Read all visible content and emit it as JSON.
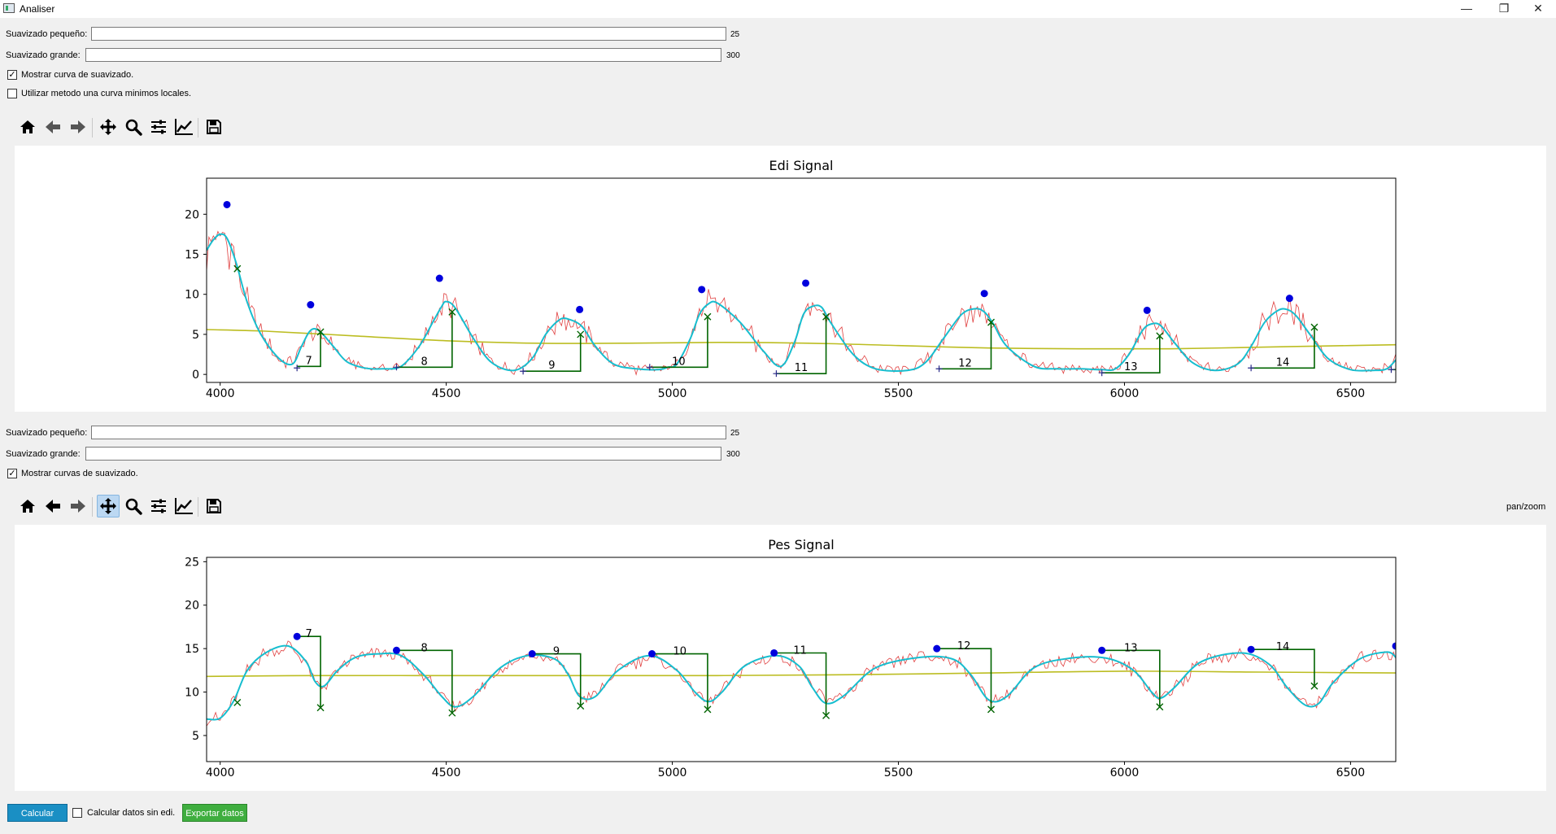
{
  "window": {
    "title": "Analiser",
    "minimize_icon": "minimize-icon",
    "restore_icon": "restore-icon",
    "close_icon": "close-icon"
  },
  "panel1": {
    "small_smooth_label": "Suavizado pequeño:",
    "small_smooth_value": "25",
    "large_smooth_label": "Suavizado grande:",
    "large_smooth_value": "300",
    "show_curve_label": "Mostrar curva de suavizado.",
    "show_curve_checked": true,
    "local_min_label": "Utilizar metodo una curva minimos locales.",
    "local_min_checked": false
  },
  "panel2": {
    "small_smooth_label": "Suavizado pequeño:",
    "small_smooth_value": "25",
    "large_smooth_label": "Suavizado grande:",
    "large_smooth_value": "300",
    "show_curves_label": "Mostrar curvas de suavizado.",
    "show_curves_checked": true,
    "status_text": "pan/zoom"
  },
  "toolbar_icons": [
    "home-icon",
    "back-icon",
    "forward-icon",
    "pan-icon",
    "zoom-icon",
    "configure-subplots-icon",
    "edit-axis-icon",
    "save-icon"
  ],
  "bottom": {
    "calcular_label": "Calcular",
    "calcular_color": "#1a8fc4",
    "sin_edi_label": "Calcular datos sin edi.",
    "exportar_label": "Exportar datos",
    "exportar_color": "#3fae3f"
  },
  "colors": {
    "raw": "#e04040",
    "smooth": "#17becf",
    "trend": "#bcbd22",
    "marker": "#0000dd",
    "box": "#006400"
  },
  "chart_data": [
    {
      "type": "line",
      "title": "Edi Signal",
      "xlim": [
        3970,
        6600
      ],
      "ylim": [
        -1,
        24.5
      ],
      "xticks": [
        4000,
        4500,
        5000,
        5500,
        6000,
        6500
      ],
      "yticks": [
        0,
        5,
        10,
        15,
        20
      ],
      "series": [
        {
          "name": "smooth",
          "x": [
            3970,
            3985,
            4000,
            4015,
            4035,
            4060,
            4090,
            4130,
            4160,
            4180,
            4200,
            4220,
            4250,
            4280,
            4320,
            4360,
            4400,
            4440,
            4470,
            4490,
            4500,
            4520,
            4560,
            4600,
            4650,
            4690,
            4720,
            4750,
            4770,
            4800,
            4830,
            4870,
            4920,
            4970,
            5010,
            4990,
            5040,
            5060,
            5080,
            5100,
            5150,
            5200,
            5240,
            5270,
            5290,
            5310,
            5330,
            5350,
            5400,
            5450,
            5520,
            5560,
            5600,
            5640,
            5670,
            5690,
            5710,
            5740,
            5800,
            5850,
            5900,
            5950,
            5980,
            6010,
            6040,
            6060,
            6080,
            6110,
            6150,
            6200,
            6250,
            6280,
            6310,
            6340,
            6360,
            6380,
            6410,
            6450,
            6500,
            6550,
            6580,
            6600
          ],
          "y": [
            15.5,
            16.8,
            17.5,
            17.0,
            14,
            9,
            5,
            2,
            1.3,
            3.5,
            5.5,
            5.4,
            3.5,
            1.6,
            0.8,
            0.7,
            1.0,
            3.5,
            6.5,
            8.5,
            9.1,
            8.3,
            4.5,
            1.5,
            0.5,
            2,
            5,
            6.8,
            6.9,
            6.0,
            3.5,
            1.3,
            0.7,
            0.6,
            1.3,
            0.9,
            4.5,
            7.5,
            8.8,
            8.9,
            6.5,
            3.0,
            1.0,
            4,
            7.5,
            8.5,
            8.4,
            6.5,
            2.5,
            0.7,
            0.5,
            1.5,
            4.5,
            7.5,
            8.2,
            7.8,
            6.3,
            3.5,
            1.0,
            0.7,
            0.7,
            0.6,
            0.7,
            2.5,
            5.5,
            6.3,
            6.1,
            4.0,
            1.5,
            0.5,
            1.3,
            3.5,
            6.5,
            8.0,
            8.1,
            7.3,
            5.0,
            2.0,
            0.6,
            0.5,
            0.7,
            1.8
          ]
        },
        {
          "name": "trend",
          "x": [
            3970,
            4100,
            4300,
            4500,
            4700,
            4900,
            5100,
            5300,
            5500,
            5700,
            5900,
            6100,
            6300,
            6500,
            6600
          ],
          "y": [
            5.6,
            5.4,
            4.8,
            4.2,
            3.9,
            3.9,
            4.0,
            3.9,
            3.6,
            3.3,
            3.2,
            3.2,
            3.4,
            3.6,
            3.7
          ]
        }
      ],
      "peaks": {
        "x": [
          4015,
          4200,
          4485,
          4795,
          5065,
          5295,
          5690,
          6050,
          6365
        ],
        "y": [
          21.2,
          8.7,
          12.0,
          8.1,
          10.6,
          11.4,
          10.1,
          8.0,
          9.5
        ]
      },
      "crosses": {
        "x": [
          4038,
          4222,
          4513,
          4797,
          5078,
          5340,
          5705,
          6078,
          6420
        ],
        "y": [
          13.2,
          5.3,
          7.8,
          5.0,
          7.2,
          7.2,
          6.5,
          4.8,
          5.9
        ]
      },
      "plus_points": {
        "x": [
          4170,
          4390,
          4670,
          4950,
          5230,
          5590,
          5950,
          6280,
          6590
        ],
        "y": [
          0.8,
          0.9,
          0.4,
          0.9,
          0.1,
          0.7,
          0.2,
          0.8,
          0.6
        ]
      },
      "cycles": [
        {
          "label": "7",
          "x0": 4170,
          "x1": 4222,
          "base": 1.0,
          "top": 5.3
        },
        {
          "label": "8",
          "x0": 4390,
          "x1": 4513,
          "base": 0.9,
          "top": 7.8
        },
        {
          "label": "9",
          "x0": 4670,
          "x1": 4797,
          "base": 0.4,
          "top": 5.0
        },
        {
          "label": "10",
          "x0": 4950,
          "x1": 5078,
          "base": 0.9,
          "top": 7.2
        },
        {
          "label": "11",
          "x0": 5230,
          "x1": 5340,
          "base": 0.1,
          "top": 7.2
        },
        {
          "label": "12",
          "x0": 5590,
          "x1": 5705,
          "base": 0.7,
          "top": 6.5
        },
        {
          "label": "13",
          "x0": 5950,
          "x1": 6078,
          "base": 0.2,
          "top": 4.8
        },
        {
          "label": "14",
          "x0": 6280,
          "x1": 6420,
          "base": 0.8,
          "top": 5.9
        },
        {
          "label": "",
          "x0": 6590,
          "x1": 6600,
          "base": 0.6,
          "top": 0.6
        }
      ]
    },
    {
      "type": "line",
      "title": "Pes Signal",
      "xlim": [
        3970,
        6600
      ],
      "ylim": [
        2,
        25.5
      ],
      "xticks": [
        4000,
        4500,
        5000,
        5500,
        6000,
        6500
      ],
      "yticks": [
        5,
        10,
        15,
        20,
        25
      ],
      "series": [
        {
          "name": "smooth",
          "x": [
            3970,
            4000,
            4030,
            4060,
            4100,
            4150,
            4190,
            4210,
            4230,
            4260,
            4300,
            4350,
            4400,
            4450,
            4490,
            4520,
            4560,
            4620,
            4680,
            4740,
            4770,
            4795,
            4830,
            4880,
            4950,
            5010,
            5050,
            5080,
            5110,
            5160,
            5230,
            5280,
            5310,
            5340,
            5380,
            5450,
            5550,
            5620,
            5660,
            5700,
            5740,
            5800,
            5880,
            5960,
            6020,
            6060,
            6080,
            6110,
            6170,
            6260,
            6320,
            6360,
            6400,
            6430,
            6460,
            6520,
            6580,
            6600
          ],
          "y": [
            6.9,
            7.0,
            9.0,
            12.5,
            14.5,
            15.3,
            13.5,
            11.2,
            10.7,
            12.5,
            14.0,
            14.4,
            14.2,
            12.0,
            9.5,
            8.3,
            9.5,
            12.8,
            14.2,
            13.8,
            12.0,
            9.5,
            9.5,
            12.5,
            14.2,
            12.5,
            10.0,
            8.9,
            10.0,
            13.0,
            14.2,
            13.0,
            10.5,
            8.7,
            9.6,
            12.8,
            14.0,
            13.8,
            12.0,
            9.1,
            9.5,
            12.8,
            13.9,
            13.9,
            12.5,
            10.0,
            9.3,
            10.5,
            13.5,
            14.5,
            13.2,
            10.5,
            8.5,
            8.7,
            11.0,
            13.8,
            14.6,
            14.0
          ]
        },
        {
          "name": "trend",
          "x": [
            3970,
            4200,
            4500,
            4800,
            5100,
            5400,
            5700,
            6000,
            6300,
            6600
          ],
          "y": [
            11.8,
            11.9,
            11.9,
            11.9,
            11.9,
            12.0,
            12.2,
            12.4,
            12.3,
            12.2
          ]
        }
      ],
      "peaks": {
        "x": [
          4170,
          4390,
          4690,
          4955,
          5225,
          5585,
          5950,
          6280,
          6600
        ],
        "y": [
          16.4,
          14.8,
          14.4,
          14.4,
          14.5,
          15.0,
          14.8,
          14.9,
          15.3
        ]
      },
      "crosses": {
        "x": [
          4038,
          4222,
          4513,
          4797,
          5078,
          5340,
          5705,
          6078,
          6420
        ],
        "y": [
          8.8,
          8.2,
          7.6,
          8.4,
          8.0,
          7.3,
          8.0,
          8.3,
          10.7
        ]
      },
      "cycles": [
        {
          "label": "7",
          "x0": 4170,
          "x1": 4222,
          "top": 16.4,
          "bottom": 8.2
        },
        {
          "label": "8",
          "x0": 4390,
          "x1": 4513,
          "top": 14.8,
          "bottom": 7.6
        },
        {
          "label": "9",
          "x0": 4690,
          "x1": 4797,
          "top": 14.4,
          "bottom": 8.4
        },
        {
          "label": "10",
          "x0": 4955,
          "x1": 5078,
          "top": 14.4,
          "bottom": 8.0
        },
        {
          "label": "11",
          "x0": 5225,
          "x1": 5340,
          "top": 14.5,
          "bottom": 7.3
        },
        {
          "label": "12",
          "x0": 5585,
          "x1": 5705,
          "top": 15.0,
          "bottom": 8.0
        },
        {
          "label": "13",
          "x0": 5950,
          "x1": 6078,
          "top": 14.8,
          "bottom": 8.3
        },
        {
          "label": "14",
          "x0": 6280,
          "x1": 6420,
          "top": 14.9,
          "bottom": 10.7
        }
      ]
    }
  ]
}
